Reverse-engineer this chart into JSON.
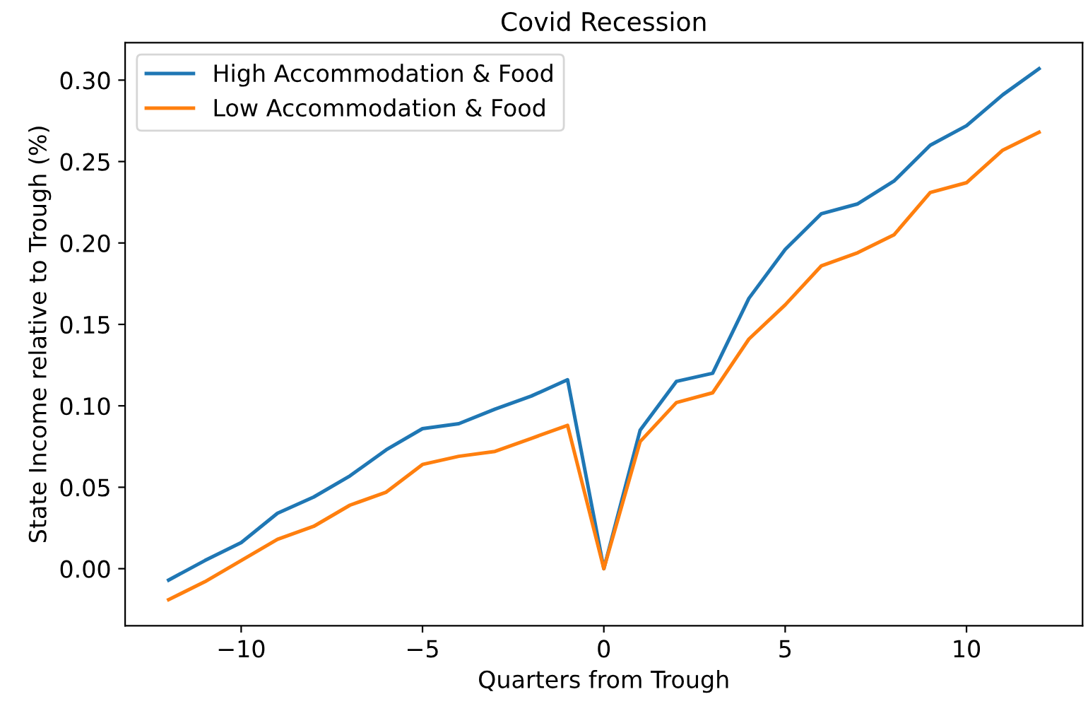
{
  "chart_data": {
    "type": "line",
    "title": "Covid Recession",
    "xlabel": "Quarters from Trough",
    "ylabel": "State Income relative to Trough (%)",
    "x": [
      -12,
      -11,
      -10,
      -9,
      -8,
      -7,
      -6,
      -5,
      -4,
      -3,
      -2,
      -1,
      0,
      1,
      2,
      3,
      4,
      5,
      6,
      7,
      8,
      9,
      10,
      11,
      12
    ],
    "series": [
      {
        "name": "High Accommodation & Food",
        "color": "#1f77b4",
        "values": [
          -0.007,
          0.005,
          0.016,
          0.034,
          0.044,
          0.057,
          0.073,
          0.086,
          0.089,
          0.098,
          0.106,
          0.116,
          0.0,
          0.085,
          0.115,
          0.12,
          0.166,
          0.196,
          0.218,
          0.224,
          0.238,
          0.26,
          0.272,
          0.291,
          0.307
        ]
      },
      {
        "name": "Low Accommodation & Food",
        "color": "#ff7f0e",
        "values": [
          -0.019,
          -0.008,
          0.005,
          0.018,
          0.026,
          0.039,
          0.047,
          0.064,
          0.069,
          0.072,
          0.08,
          0.088,
          0.0,
          0.078,
          0.102,
          0.108,
          0.141,
          0.162,
          0.186,
          0.194,
          0.205,
          0.231,
          0.237,
          0.257,
          0.268
        ]
      }
    ],
    "xlim": [
      -13.2,
      13.2
    ],
    "xticks": [
      {
        "value": -10,
        "label": "−10"
      },
      {
        "value": -5,
        "label": "−5"
      },
      0,
      5,
      10
    ],
    "ylim": [
      -0.035,
      0.323
    ],
    "yticks": [
      {
        "value": 0,
        "label": "0.00"
      },
      {
        "value": 0.05,
        "label": "0.05"
      },
      {
        "value": 0.1,
        "label": "0.10"
      },
      {
        "value": 0.15,
        "label": "0.15"
      },
      {
        "value": 0.2,
        "label": "0.20"
      },
      {
        "value": 0.25,
        "label": "0.25"
      },
      {
        "value": 0.3,
        "label": "0.30"
      }
    ],
    "legend": "top left",
    "grid": false,
    "marker": "none",
    "line_style": "solid"
  }
}
